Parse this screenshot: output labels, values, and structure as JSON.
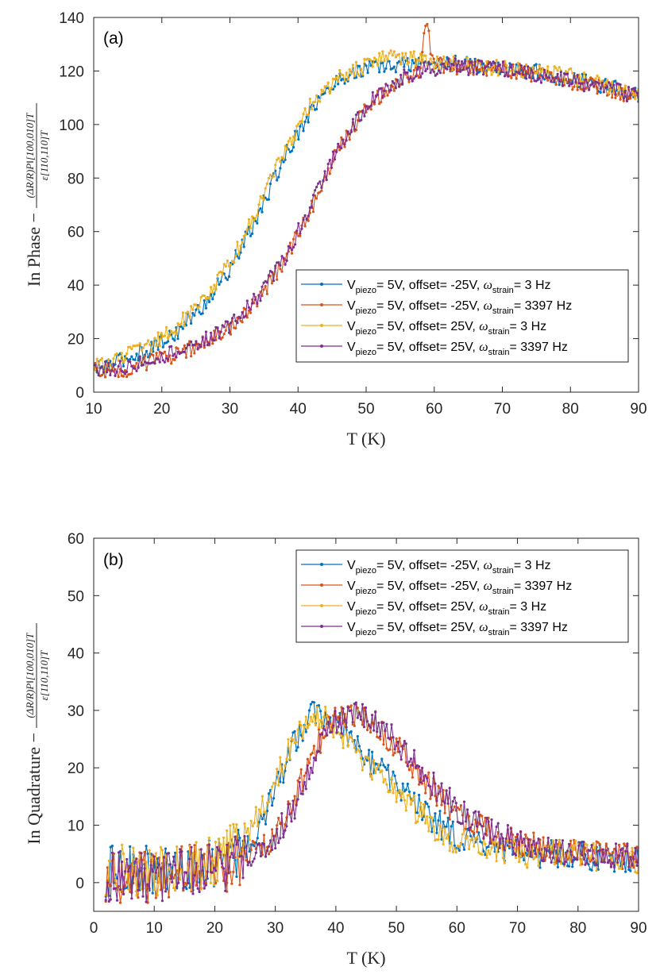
{
  "chart_data": [
    {
      "type": "line",
      "panel_label": "(a)",
      "title": "",
      "xlabel": "T (K)",
      "ylabel_prefix": "In Phase −",
      "ylabel_numerator": "(ΔR/R)P‖[100,010]T",
      "ylabel_denominator": "ε[110,110]T",
      "xlim": [
        10,
        90
      ],
      "ylim": [
        0,
        140
      ],
      "xticks": [
        10,
        20,
        30,
        40,
        50,
        60,
        70,
        80,
        90
      ],
      "yticks": [
        0,
        20,
        40,
        60,
        80,
        100,
        120,
        140
      ],
      "legend_position": "lower-right",
      "series": [
        {
          "name": "Vpiezo= 5V, offset=  -25V, ωstrain= 3 Hz",
          "color": "#0072BD",
          "x": [
            10,
            14,
            18,
            22,
            26,
            30,
            34,
            38,
            42,
            46,
            50,
            54,
            58,
            62,
            66,
            70,
            74,
            78,
            82,
            86,
            90
          ],
          "y": [
            8,
            12,
            16,
            22,
            32,
            46,
            65,
            88,
            106,
            117,
            121,
            122,
            123,
            123,
            122,
            121,
            120,
            118,
            116,
            114,
            111
          ]
        },
        {
          "name": "Vpiezo= 5V, offset=  -25V, ωstrain= 3397 Hz",
          "color": "#D95319",
          "x": [
            10,
            14,
            18,
            22,
            26,
            30,
            34,
            38,
            42,
            46,
            50,
            54,
            58,
            58.7,
            60,
            62,
            66,
            70,
            74,
            78,
            82,
            86,
            90
          ],
          "y": [
            8,
            8,
            11,
            14,
            18,
            24,
            34,
            49,
            69,
            91,
            106,
            115,
            120,
            139,
            122,
            122,
            121,
            121,
            119,
            117,
            115,
            113,
            110
          ]
        },
        {
          "name": "Vpiezo= 5V, offset=  25V, ωstrain= 3 Hz",
          "color": "#EDB120",
          "x": [
            10,
            14,
            18,
            22,
            26,
            30,
            34,
            38,
            42,
            46,
            50,
            54,
            58,
            62,
            66,
            70,
            74,
            78,
            82,
            86,
            90
          ],
          "y": [
            9,
            13,
            17,
            24,
            34,
            48,
            68,
            90,
            108,
            118,
            122,
            126,
            124,
            123,
            122,
            121,
            120,
            119,
            117,
            114,
            111
          ]
        },
        {
          "name": "Vpiezo= 5V, offset=  25V, ωstrain= 3397 Hz",
          "color": "#7E2F8E",
          "x": [
            10,
            14,
            18,
            22,
            26,
            30,
            34,
            38,
            42,
            46,
            50,
            54,
            58,
            62,
            66,
            70,
            74,
            78,
            82,
            86,
            90
          ],
          "y": [
            9,
            9,
            12,
            15,
            19,
            25,
            35,
            50,
            70,
            92,
            107,
            116,
            120,
            122,
            121,
            121,
            119,
            117,
            115,
            113,
            110
          ]
        }
      ]
    },
    {
      "type": "line",
      "panel_label": "(b)",
      "title": "",
      "xlabel": "T (K)",
      "ylabel_prefix": "In Quadrature −",
      "ylabel_numerator": "(ΔR/R)P‖[100,010]T",
      "ylabel_denominator": "ε[110,110]T",
      "xlim": [
        0,
        90
      ],
      "ylim": [
        -5,
        60
      ],
      "xticks": [
        0,
        10,
        20,
        30,
        40,
        50,
        60,
        70,
        80,
        90
      ],
      "yticks": [
        0,
        10,
        20,
        30,
        40,
        50,
        60
      ],
      "legend_position": "top-right",
      "series": [
        {
          "name": "Vpiezo= 5V, offset=  -25V, ωstrain= 3 Hz",
          "color": "#0072BD",
          "x": [
            2,
            6,
            10,
            14,
            18,
            22,
            26,
            30,
            33,
            36,
            39,
            42,
            45,
            48,
            52,
            56,
            60,
            65,
            70,
            75,
            80,
            85,
            90
          ],
          "y": [
            2,
            2,
            2,
            2,
            3,
            4,
            7,
            16,
            24,
            30,
            29,
            26,
            22,
            19,
            15,
            11,
            8,
            6,
            5,
            5,
            5,
            4,
            4
          ]
        },
        {
          "name": "Vpiezo= 5V, offset=  -25V, ωstrain= 3397 Hz",
          "color": "#D95319",
          "x": [
            2,
            6,
            10,
            14,
            18,
            22,
            26,
            30,
            33,
            36,
            39,
            42,
            45,
            48,
            52,
            56,
            60,
            65,
            70,
            75,
            80,
            85,
            90
          ],
          "y": [
            1,
            1,
            1,
            2,
            2,
            3,
            5,
            8,
            14,
            22,
            28,
            30,
            29,
            26,
            21,
            16,
            12,
            9,
            7,
            6,
            5,
            5,
            4
          ]
        },
        {
          "name": "Vpiezo= 5V, offset=  25V, ωstrain= 3 Hz",
          "color": "#EDB120",
          "x": [
            2,
            6,
            10,
            14,
            18,
            22,
            26,
            30,
            33,
            36,
            39,
            42,
            45,
            48,
            52,
            56,
            60,
            65,
            70,
            75,
            80,
            85,
            90
          ],
          "y": [
            2,
            2,
            2,
            3,
            3,
            5,
            9,
            18,
            25,
            29,
            28,
            25,
            21,
            18,
            14,
            10,
            7,
            6,
            5,
            5,
            5,
            4,
            4
          ]
        },
        {
          "name": "Vpiezo= 5V, offset=  25V, ωstrain= 3397 Hz",
          "color": "#7E2F8E",
          "x": [
            2,
            6,
            10,
            14,
            18,
            22,
            26,
            30,
            33,
            36,
            39,
            42,
            45,
            48,
            52,
            56,
            60,
            65,
            70,
            75,
            80,
            85,
            90
          ],
          "y": [
            1,
            1,
            1,
            2,
            2,
            3,
            5,
            8,
            13,
            21,
            27,
            29,
            29,
            27,
            22,
            17,
            13,
            9,
            7,
            6,
            5,
            5,
            5
          ]
        }
      ]
    }
  ]
}
